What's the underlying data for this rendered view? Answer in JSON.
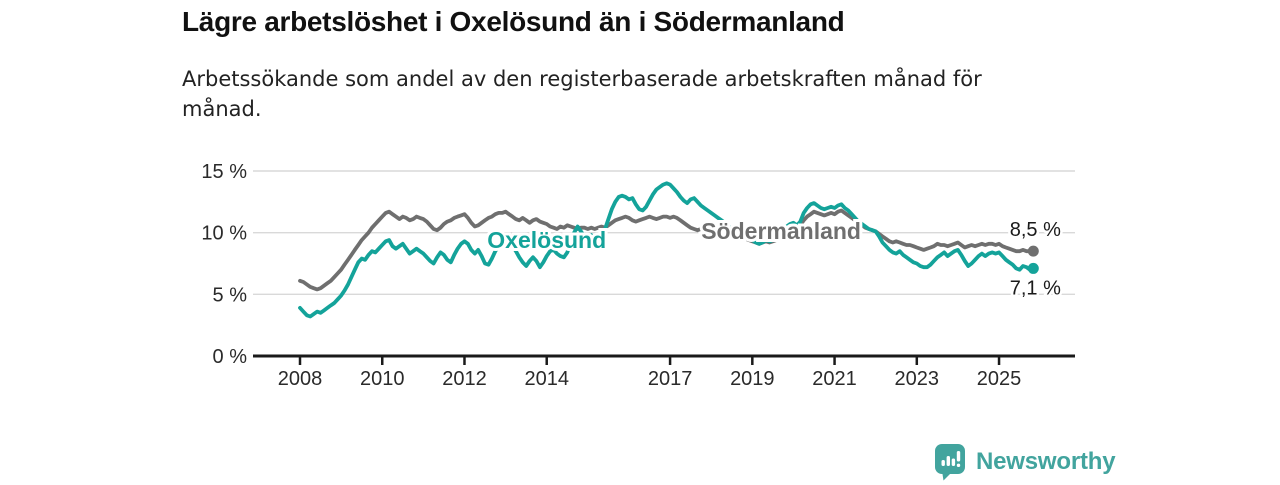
{
  "header": {
    "title": "Lägre arbetslöshet i Oxelösund än i Södermanland",
    "subtitle": "Arbetssökande som andel av den registerbaserade arbetskraften månad för månad."
  },
  "chart_data": {
    "type": "line",
    "unit": "%",
    "x_start_year": 2008,
    "x_interval": "monthly",
    "x_tick_years": [
      2008,
      2010,
      2012,
      2014,
      2017,
      2019,
      2021,
      2023,
      2025
    ],
    "y_ticks": [
      0,
      5,
      10,
      15
    ],
    "y_tick_labels": [
      "0 %",
      "5 %",
      "10 %",
      "15 %"
    ],
    "ylim": [
      0,
      15.8
    ],
    "grid": "horizontal",
    "colors": {
      "oxelosund": "#14a39a",
      "sodermanland": "#6f6f6f",
      "gridline": "#d9d9d9",
      "axis": "#1a1a1a",
      "tick_text": "#2a2a2a",
      "end_label_text": "#1a1a1a"
    },
    "series": [
      {
        "name": "Södermanland",
        "color": "#6f6f6f",
        "end_label": "8,5 %",
        "end_label_dy": -15,
        "values": [
          6.1,
          6.0,
          5.8,
          5.6,
          5.5,
          5.4,
          5.5,
          5.7,
          5.9,
          6.1,
          6.4,
          6.7,
          7.0,
          7.4,
          7.8,
          8.2,
          8.6,
          9.0,
          9.4,
          9.7,
          10.0,
          10.4,
          10.7,
          11.0,
          11.3,
          11.6,
          11.7,
          11.5,
          11.3,
          11.1,
          11.3,
          11.2,
          11.0,
          11.1,
          11.3,
          11.2,
          11.1,
          10.9,
          10.6,
          10.3,
          10.2,
          10.4,
          10.7,
          10.9,
          11.0,
          11.2,
          11.3,
          11.4,
          11.5,
          11.2,
          10.8,
          10.5,
          10.6,
          10.8,
          11.0,
          11.2,
          11.3,
          11.5,
          11.6,
          11.6,
          11.7,
          11.5,
          11.3,
          11.1,
          11.0,
          11.2,
          11.0,
          10.8,
          11.0,
          11.1,
          10.9,
          10.8,
          10.7,
          10.5,
          10.4,
          10.3,
          10.5,
          10.4,
          10.6,
          10.5,
          10.4,
          10.3,
          10.4,
          10.4,
          10.3,
          10.4,
          10.3,
          10.4,
          10.5,
          10.4,
          10.6,
          10.8,
          11.0,
          11.1,
          11.2,
          11.3,
          11.2,
          11.0,
          10.9,
          11.0,
          11.1,
          11.2,
          11.3,
          11.2,
          11.1,
          11.2,
          11.3,
          11.3,
          11.2,
          11.3,
          11.2,
          11.0,
          10.8,
          10.6,
          10.4,
          10.3,
          10.2,
          10.3,
          10.4,
          10.5,
          10.4,
          10.3,
          10.2,
          10.3,
          10.2,
          10.1,
          10.0,
          9.9,
          9.8,
          9.6,
          9.5,
          9.4,
          9.3,
          9.2,
          9.1,
          9.2,
          9.3,
          9.2,
          9.3,
          9.4,
          9.5,
          9.7,
          9.9,
          10.1,
          10.2,
          10.3,
          10.6,
          11.0,
          11.3,
          11.5,
          11.7,
          11.6,
          11.5,
          11.4,
          11.5,
          11.6,
          11.5,
          11.7,
          11.8,
          11.6,
          11.4,
          11.2,
          11.0,
          10.8,
          10.6,
          10.4,
          10.3,
          10.2,
          10.1,
          9.9,
          9.7,
          9.5,
          9.3,
          9.2,
          9.3,
          9.2,
          9.1,
          9.0,
          9.0,
          8.9,
          8.8,
          8.7,
          8.6,
          8.7,
          8.8,
          8.9,
          9.1,
          9.0,
          9.0,
          8.9,
          9.0,
          9.1,
          9.2,
          9.0,
          8.8,
          8.9,
          9.0,
          8.9,
          9.0,
          9.1,
          9.0,
          9.1,
          9.1,
          9.0,
          9.1,
          8.9,
          8.8,
          8.7,
          8.6,
          8.5,
          8.5,
          8.6,
          8.5,
          8.5,
          8.5
        ]
      },
      {
        "name": "Oxelösund",
        "color": "#14a39a",
        "end_label": "7,1 %",
        "end_label_dy": 26,
        "values": [
          3.9,
          3.6,
          3.3,
          3.2,
          3.4,
          3.6,
          3.5,
          3.7,
          3.9,
          4.1,
          4.3,
          4.6,
          4.9,
          5.3,
          5.8,
          6.4,
          7.0,
          7.6,
          7.9,
          7.8,
          8.2,
          8.5,
          8.4,
          8.7,
          9.0,
          9.3,
          9.4,
          8.9,
          8.7,
          8.9,
          9.1,
          8.7,
          8.3,
          8.5,
          8.7,
          8.5,
          8.3,
          8.0,
          7.7,
          7.5,
          8.0,
          8.4,
          8.2,
          7.8,
          7.6,
          8.2,
          8.7,
          9.1,
          9.3,
          9.1,
          8.6,
          8.3,
          8.6,
          8.1,
          7.5,
          7.4,
          7.9,
          8.5,
          8.9,
          9.1,
          9.2,
          9.3,
          8.9,
          8.5,
          8.0,
          7.6,
          7.3,
          7.7,
          8.0,
          7.7,
          7.2,
          7.6,
          8.1,
          8.5,
          8.6,
          8.3,
          8.1,
          8.0,
          8.4,
          9.2,
          10.0,
          10.5,
          10.1,
          9.7,
          9.6,
          9.8,
          9.5,
          9.4,
          9.7,
          10.3,
          11.1,
          11.9,
          12.5,
          12.9,
          13.0,
          12.9,
          12.7,
          12.8,
          12.3,
          11.9,
          11.8,
          12.1,
          12.6,
          13.1,
          13.5,
          13.7,
          13.9,
          14.0,
          13.9,
          13.6,
          13.3,
          12.9,
          12.6,
          12.4,
          12.7,
          12.8,
          12.5,
          12.2,
          12.0,
          11.8,
          11.6,
          11.4,
          11.2,
          11.0,
          10.8,
          10.5,
          10.3,
          10.1,
          9.9,
          9.7,
          9.6,
          9.5,
          9.4,
          9.2,
          9.1,
          9.2,
          9.4,
          9.3,
          9.4,
          9.6,
          9.9,
          10.2,
          10.5,
          10.7,
          10.8,
          10.6,
          10.9,
          11.6,
          12.0,
          12.3,
          12.4,
          12.2,
          12.0,
          11.9,
          12.0,
          12.1,
          12.0,
          12.2,
          12.3,
          12.0,
          11.8,
          11.5,
          11.2,
          10.9,
          10.7,
          10.5,
          10.3,
          10.2,
          10.1,
          9.7,
          9.2,
          8.9,
          8.6,
          8.4,
          8.3,
          8.5,
          8.2,
          8.0,
          7.8,
          7.6,
          7.5,
          7.3,
          7.2,
          7.2,
          7.4,
          7.7,
          8.0,
          8.2,
          8.4,
          8.1,
          8.3,
          8.5,
          8.6,
          8.2,
          7.7,
          7.3,
          7.5,
          7.8,
          8.1,
          8.3,
          8.1,
          8.3,
          8.4,
          8.3,
          8.4,
          8.1,
          7.8,
          7.6,
          7.4,
          7.1,
          7.0,
          7.3,
          7.2,
          7.0,
          7.1
        ]
      }
    ],
    "series_annotations": [
      {
        "text": "Oxelösund",
        "color": "#14a39a",
        "x_year": 2014.0,
        "y_value": 9.4
      },
      {
        "text": "Södermanland",
        "color": "#6f6f6f",
        "x_year": 2019.7,
        "y_value": 10.15
      }
    ]
  },
  "footer": {
    "brand": "Newsworthy",
    "brand_color": "#42a49e",
    "logo_icon": "bar-chart-speech-bubble-icon"
  }
}
